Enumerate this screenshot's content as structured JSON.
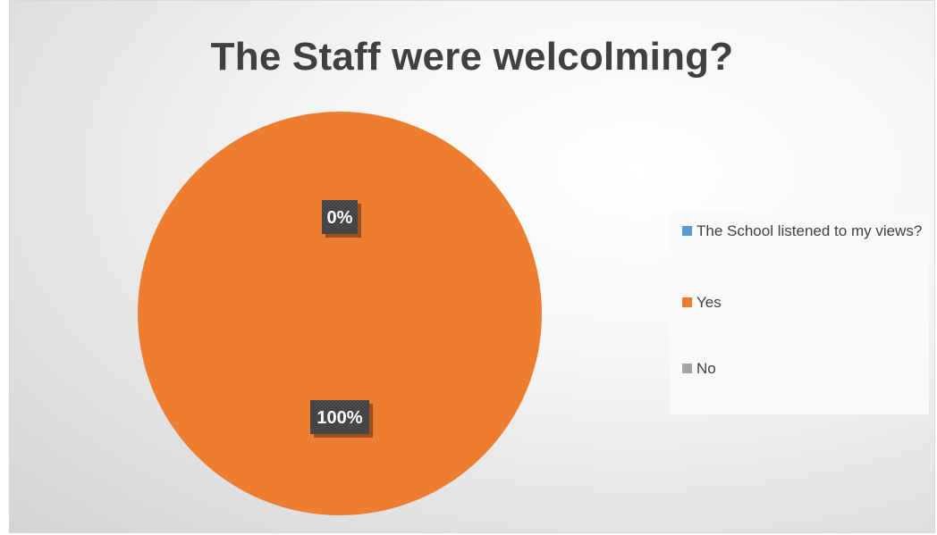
{
  "chart_data": {
    "type": "pie",
    "title": "The Staff were welcolming?",
    "categories": [
      "The School listened to my views?",
      "Yes",
      "No"
    ],
    "values": [
      0,
      100,
      0
    ],
    "data_labels": [
      "0%",
      "100%",
      "0%"
    ],
    "colors": [
      "#5b9bd5",
      "#ed7d31",
      "#a5a5a5"
    ],
    "legend_position": "right"
  }
}
